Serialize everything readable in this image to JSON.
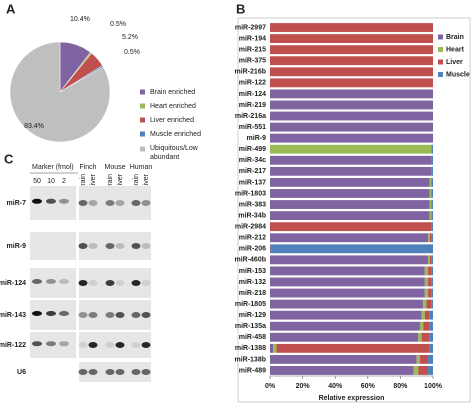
{
  "chart_data": [
    {
      "type": "pie",
      "panel_label": "A",
      "categories": [
        "Brain enriched",
        "Heart enriched",
        "Liver enriched",
        "Muscle enriched",
        "Ubiquitous/Low abundant"
      ],
      "values": [
        10.4,
        0.5,
        5.2,
        0.5,
        83.4
      ],
      "value_labels": [
        "10.4%",
        "0.5%",
        "5.2%",
        "0.5%",
        "83.4%"
      ],
      "colors": [
        "#8064a2",
        "#9bbb59",
        "#c0504d",
        "#4f81bd",
        "#bfbfbf"
      ],
      "legend": "right"
    },
    {
      "type": "stacked-bar-horizontal",
      "panel_label": "B",
      "categories": [
        "miR-2997",
        "miR-194",
        "miR-215",
        "miR-375",
        "miR-216b",
        "miR-122",
        "miR-124",
        "miR-219",
        "miR-216a",
        "miR-551",
        "miR-9",
        "miR-499",
        "miR-34c",
        "miR-217",
        "miR-137",
        "miR-1803",
        "miR-383",
        "miR-34b",
        "miR-2984",
        "miR-212",
        "miR-206",
        "miR-460b",
        "miR-153",
        "miR-132",
        "miR-218",
        "miR-1805",
        "miR-129",
        "miR-135a",
        "miR-458",
        "miR-1388",
        "miR-138b",
        "miR-489"
      ],
      "series": [
        {
          "name": "Brain",
          "color": "#8064a2",
          "values": [
            0,
            0,
            0,
            0,
            0,
            0,
            100,
            100,
            100,
            100,
            100,
            0,
            99,
            99,
            98,
            98,
            98,
            98,
            0,
            97,
            1,
            97,
            95,
            95,
            95,
            94,
            93,
            92,
            91,
            2,
            90,
            88
          ]
        },
        {
          "name": "Heart",
          "color": "#9bbb59",
          "values": [
            0,
            0,
            0,
            0,
            0,
            0,
            0,
            0,
            0,
            0,
            0,
            99,
            0,
            0,
            1,
            1,
            1,
            1,
            0,
            1,
            0,
            1,
            2,
            2,
            2,
            2,
            2,
            2,
            2,
            2,
            2,
            3
          ]
        },
        {
          "name": "Liver",
          "color": "#c0504d",
          "values": [
            100,
            100,
            100,
            100,
            100,
            100,
            0,
            0,
            0,
            0,
            0,
            0,
            0,
            0,
            0,
            0,
            0,
            0,
            99,
            1,
            0,
            1,
            2,
            2,
            2,
            3,
            3,
            4,
            5,
            94,
            5,
            6
          ]
        },
        {
          "name": "Muscle",
          "color": "#4f81bd",
          "values": [
            0,
            0,
            0,
            0,
            0,
            0,
            0,
            0,
            0,
            0,
            0,
            1,
            1,
            1,
            1,
            1,
            1,
            1,
            1,
            1,
            99,
            1,
            1,
            1,
            1,
            1,
            2,
            2,
            2,
            2,
            3,
            3
          ]
        }
      ],
      "xlim": [
        0,
        100
      ],
      "xticks": [
        {
          "value": 0,
          "label": "0%"
        },
        {
          "value": 20,
          "label": "20%"
        },
        {
          "value": 40,
          "label": "40%"
        },
        {
          "value": 60,
          "label": "60%"
        },
        {
          "value": 80,
          "label": "80%"
        },
        {
          "value": 100,
          "label": "100%"
        }
      ],
      "x_label": "Relative expression",
      "legend": "top-right"
    }
  ],
  "panel_c": {
    "panel_label": "C",
    "marker_header": "Marker (fmol)",
    "marker_amounts": [
      50,
      10,
      2
    ],
    "species": [
      "Finch",
      "Mouse",
      "Human"
    ],
    "tissues": [
      "Brain",
      "Liver"
    ],
    "rows": [
      "miR-7",
      "miR-9",
      "miR-124",
      "miR-143",
      "miR-122",
      "U6"
    ]
  }
}
